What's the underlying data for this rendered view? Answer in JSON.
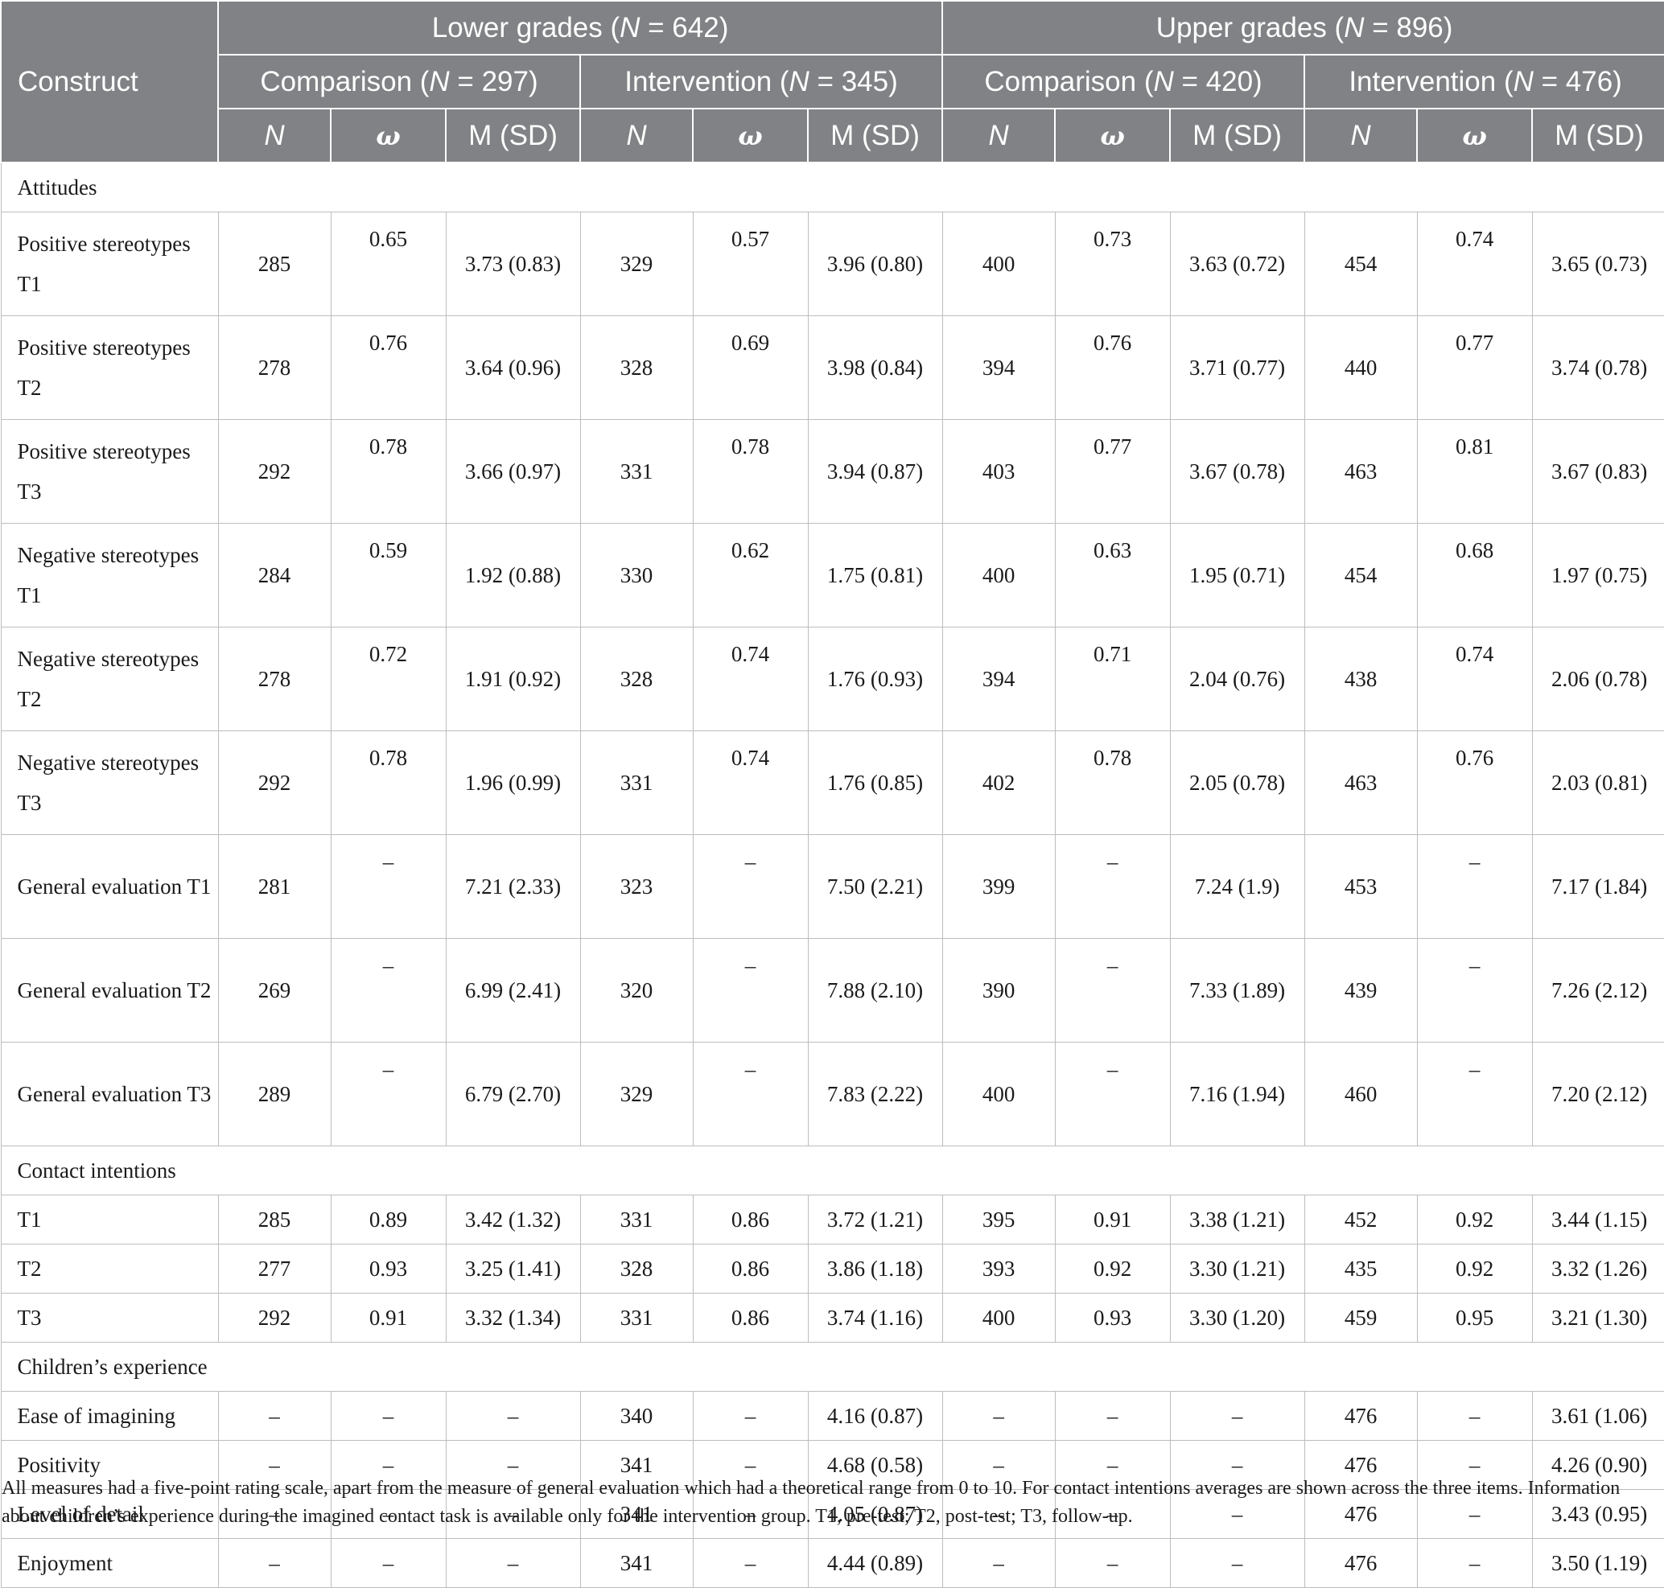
{
  "header": {
    "construct": "Construct",
    "groups": [
      {
        "label_pre": "Lower grades (",
        "label_n": "N",
        "label_post": " = 642)",
        "subgroups": [
          {
            "label_pre": "Comparison (",
            "label_n": "N",
            "label_post": " = 297)"
          },
          {
            "label_pre": "Intervention (",
            "label_n": "N",
            "label_post": " = 345)"
          }
        ]
      },
      {
        "label_pre": "Upper grades (",
        "label_n": "N",
        "label_post": " = 896)",
        "subgroups": [
          {
            "label_pre": "Comparison (",
            "label_n": "N",
            "label_post": " = 420)"
          },
          {
            "label_pre": "Intervention (",
            "label_n": "N",
            "label_post": " = 476)"
          }
        ]
      }
    ],
    "stat_cols": [
      "N",
      "ω",
      "M (SD)"
    ]
  },
  "sections": [
    {
      "title": "Attitudes",
      "rows": [
        {
          "label": "Positive stereotypes T1",
          "cells": [
            "285",
            "0.65",
            "3.73 (0.83)",
            "329",
            "0.57",
            "3.96 (0.80)",
            "400",
            "0.73",
            "3.63 (0.72)",
            "454",
            "0.74",
            "3.65 (0.73)"
          ]
        },
        {
          "label": "Positive stereotypes T2",
          "cells": [
            "278",
            "0.76",
            "3.64 (0.96)",
            "328",
            "0.69",
            "3.98 (0.84)",
            "394",
            "0.76",
            "3.71 (0.77)",
            "440",
            "0.77",
            "3.74 (0.78)"
          ]
        },
        {
          "label": "Positive stereotypes T3",
          "cells": [
            "292",
            "0.78",
            "3.66 (0.97)",
            "331",
            "0.78",
            "3.94 (0.87)",
            "403",
            "0.77",
            "3.67 (0.78)",
            "463",
            "0.81",
            "3.67 (0.83)"
          ]
        },
        {
          "label": "Negative stereotypes T1",
          "cells": [
            "284",
            "0.59",
            "1.92 (0.88)",
            "330",
            "0.62",
            "1.75 (0.81)",
            "400",
            "0.63",
            "1.95 (0.71)",
            "454",
            "0.68",
            "1.97 (0.75)"
          ]
        },
        {
          "label": "Negative stereotypes T2",
          "cells": [
            "278",
            "0.72",
            "1.91 (0.92)",
            "328",
            "0.74",
            "1.76 (0.93)",
            "394",
            "0.71",
            "2.04 (0.76)",
            "438",
            "0.74",
            "2.06 (0.78)"
          ]
        },
        {
          "label": "Negative stereotypes T3",
          "cells": [
            "292",
            "0.78",
            "1.96 (0.99)",
            "331",
            "0.74",
            "1.76 (0.85)",
            "402",
            "0.78",
            "2.05 (0.78)",
            "463",
            "0.76",
            "2.03 (0.81)"
          ]
        },
        {
          "label": "General evaluation T1",
          "cells": [
            "281",
            "–",
            "7.21 (2.33)",
            "323",
            "–",
            "7.50 (2.21)",
            "399",
            "–",
            "7.24 (1.9)",
            "453",
            "–",
            "7.17 (1.84)"
          ]
        },
        {
          "label": "General evaluation T2",
          "cells": [
            "269",
            "–",
            "6.99 (2.41)",
            "320",
            "–",
            "7.88 (2.10)",
            "390",
            "–",
            "7.33 (1.89)",
            "439",
            "–",
            "7.26 (2.12)"
          ]
        },
        {
          "label": "General evaluation T3",
          "cells": [
            "289",
            "–",
            "6.79 (2.70)",
            "329",
            "–",
            "7.83 (2.22)",
            "400",
            "–",
            "7.16 (1.94)",
            "460",
            "–",
            "7.20 (2.12)"
          ]
        }
      ]
    },
    {
      "title": "Contact intentions",
      "rows": [
        {
          "label": "T1",
          "cells": [
            "285",
            "0.89",
            "3.42 (1.32)",
            "331",
            "0.86",
            "3.72 (1.21)",
            "395",
            "0.91",
            "3.38 (1.21)",
            "452",
            "0.92",
            "3.44 (1.15)"
          ]
        },
        {
          "label": "T2",
          "cells": [
            "277",
            "0.93",
            "3.25 (1.41)",
            "328",
            "0.86",
            "3.86 (1.18)",
            "393",
            "0.92",
            "3.30 (1.21)",
            "435",
            "0.92",
            "3.32 (1.26)"
          ]
        },
        {
          "label": "T3",
          "cells": [
            "292",
            "0.91",
            "3.32 (1.34)",
            "331",
            "0.86",
            "3.74 (1.16)",
            "400",
            "0.93",
            "3.30 (1.20)",
            "459",
            "0.95",
            "3.21 (1.30)"
          ]
        }
      ]
    },
    {
      "title": "Children’s experience",
      "rows": [
        {
          "label": "Ease of imagining",
          "cells": [
            "–",
            "–",
            "–",
            "340",
            "–",
            "4.16 (0.87)",
            "–",
            "–",
            "–",
            "476",
            "–",
            "3.61 (1.06)"
          ]
        },
        {
          "label": "Positivity",
          "cells": [
            "–",
            "–",
            "–",
            "341",
            "–",
            "4.68 (0.58)",
            "–",
            "–",
            "–",
            "476",
            "–",
            "4.26 (0.90)"
          ]
        },
        {
          "label": "Level of detail",
          "cells": [
            "–",
            "–",
            "–",
            "341",
            "–",
            "4.05 (0.87)",
            "–",
            "–",
            "–",
            "476",
            "–",
            "3.43 (0.95)"
          ]
        },
        {
          "label": "Enjoyment",
          "cells": [
            "–",
            "–",
            "–",
            "341",
            "–",
            "4.44 (0.89)",
            "–",
            "–",
            "–",
            "476",
            "–",
            "3.50 (1.19)"
          ]
        }
      ]
    }
  ],
  "notes": "All measures had a five-point rating scale, apart from the measure of general evaluation which had a theoretical range from 0 to 10. For contact intentions averages are shown across the three items. Information about children’s experience during the imagined contact task is available only for the intervention group. T1, pre-test; T2, post-test; T3, follow-up."
}
